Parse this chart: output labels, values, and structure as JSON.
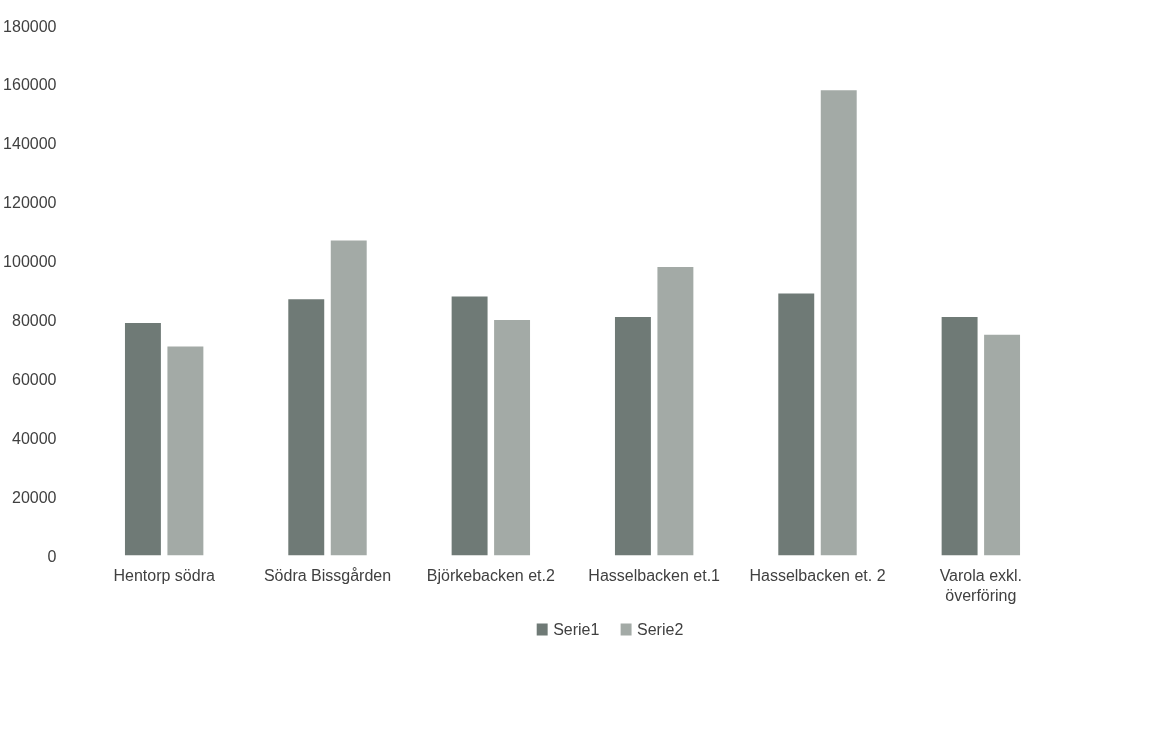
{
  "chart_data": {
    "type": "bar",
    "categories": [
      "Hentorp södra",
      "Södra Bissgården",
      "Björkebacken et.2",
      "Hasselbacken et.1",
      "Hasselbacken et. 2",
      "Varola exkl. överföring"
    ],
    "series": [
      {
        "name": "Serie1",
        "color": "#6f7a76",
        "values": [
          79000,
          87000,
          88000,
          81000,
          89000,
          81000
        ]
      },
      {
        "name": "Serie2",
        "color": "#a3aaa6",
        "values": [
          71000,
          107000,
          80000,
          98000,
          158000,
          75000
        ]
      }
    ],
    "ylim": [
      0,
      180000
    ],
    "yticks": [
      0,
      20000,
      40000,
      60000,
      80000,
      100000,
      120000,
      140000,
      160000,
      180000
    ],
    "grid": false,
    "legend": "bottom"
  }
}
